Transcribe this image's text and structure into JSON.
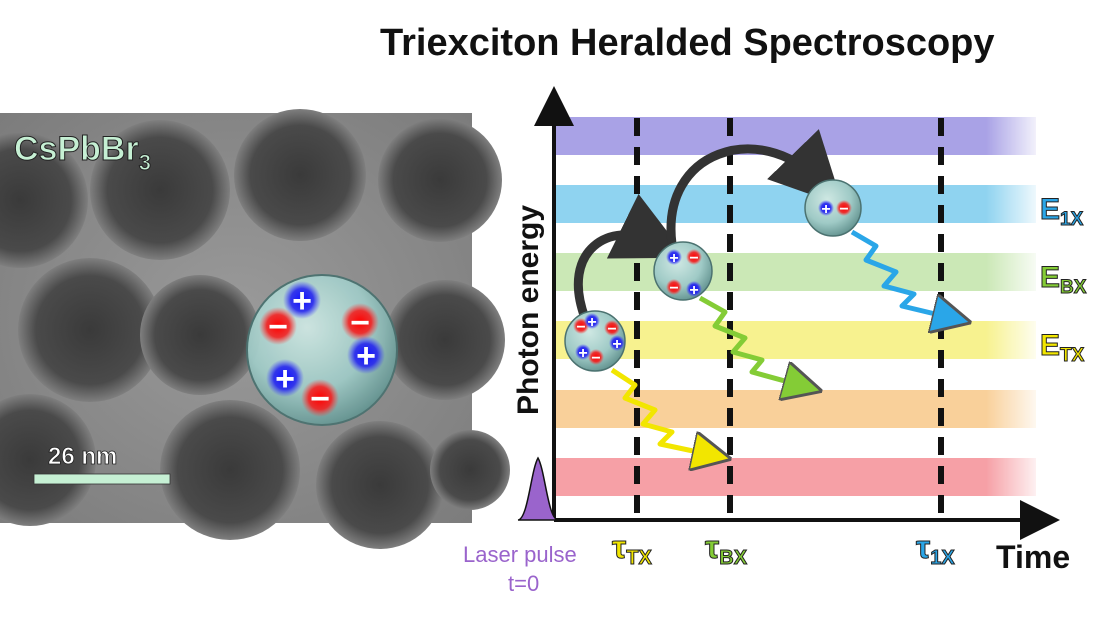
{
  "title": "Triexciton Heralded Spectroscopy",
  "micrograph": {
    "material_main": "CsPbBr",
    "material_sub": "3",
    "scale_bar": "26 nm",
    "charges": [
      "+",
      "−",
      "−",
      "+",
      "+",
      "−"
    ]
  },
  "axes": {
    "y_label": "Photon energy",
    "x_label": "Time"
  },
  "laser": {
    "line1": "Laser pulse",
    "line2": "t=0"
  },
  "lifetimes": [
    {
      "sym": "τ",
      "sub": "TX"
    },
    {
      "sym": "τ",
      "sub": "BX"
    },
    {
      "sym": "τ",
      "sub": "1X"
    }
  ],
  "energies": [
    {
      "sym": "E",
      "sub": "1X"
    },
    {
      "sym": "E",
      "sub": "BX"
    },
    {
      "sym": "E",
      "sub": "TX"
    }
  ],
  "bands": [
    "#a9a2e6",
    "#8fd3f0",
    "#cbe8b6",
    "#f7f28f",
    "#f9d09a",
    "#f6a0a6"
  ],
  "colors": {
    "tx": "#f2e600",
    "bx": "#84cc36",
    "x1": "#2aa6e8",
    "laser": "#9a64cc",
    "axis": "#111111",
    "tem_label": "#c6f0d4"
  },
  "particles": {
    "triexciton": [
      "−",
      "+",
      "−",
      "+",
      "−",
      "+"
    ],
    "biexciton": [
      "+",
      "−",
      "−",
      "+"
    ],
    "exciton": [
      "+",
      "−"
    ]
  }
}
